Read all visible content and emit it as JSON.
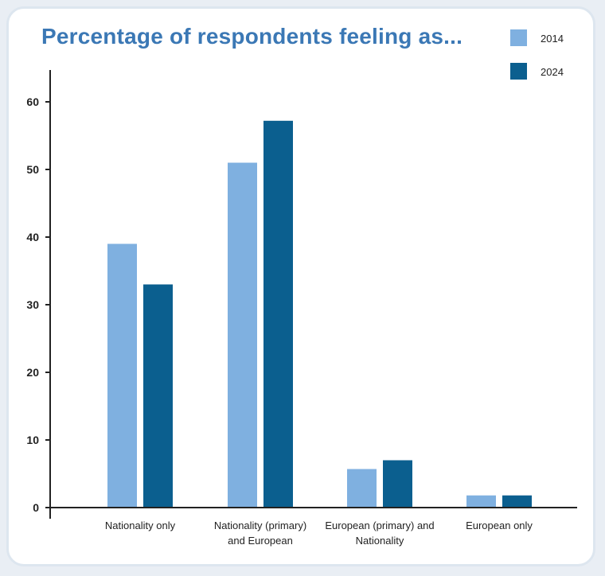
{
  "colors": {
    "2014": "#7fb0e0",
    "2024": "#0b5f8f"
  },
  "chart_data": {
    "type": "bar",
    "title": "Percentage of respondents feeling as...",
    "categories": [
      [
        "Nationality only"
      ],
      [
        "Nationality (primary)",
        "and European"
      ],
      [
        "European (primary) and",
        "Nationality"
      ],
      [
        "European only"
      ]
    ],
    "series": [
      {
        "name": "2014",
        "values": [
          39,
          51,
          5.7,
          1.8
        ]
      },
      {
        "name": "2024",
        "values": [
          33,
          57.2,
          7,
          1.8
        ]
      }
    ],
    "yticks": [
      0,
      10,
      20,
      30,
      40,
      50,
      60
    ],
    "ylim": [
      0,
      65
    ],
    "xlabel": "",
    "ylabel": "",
    "legend": "top-right",
    "grid": false
  }
}
